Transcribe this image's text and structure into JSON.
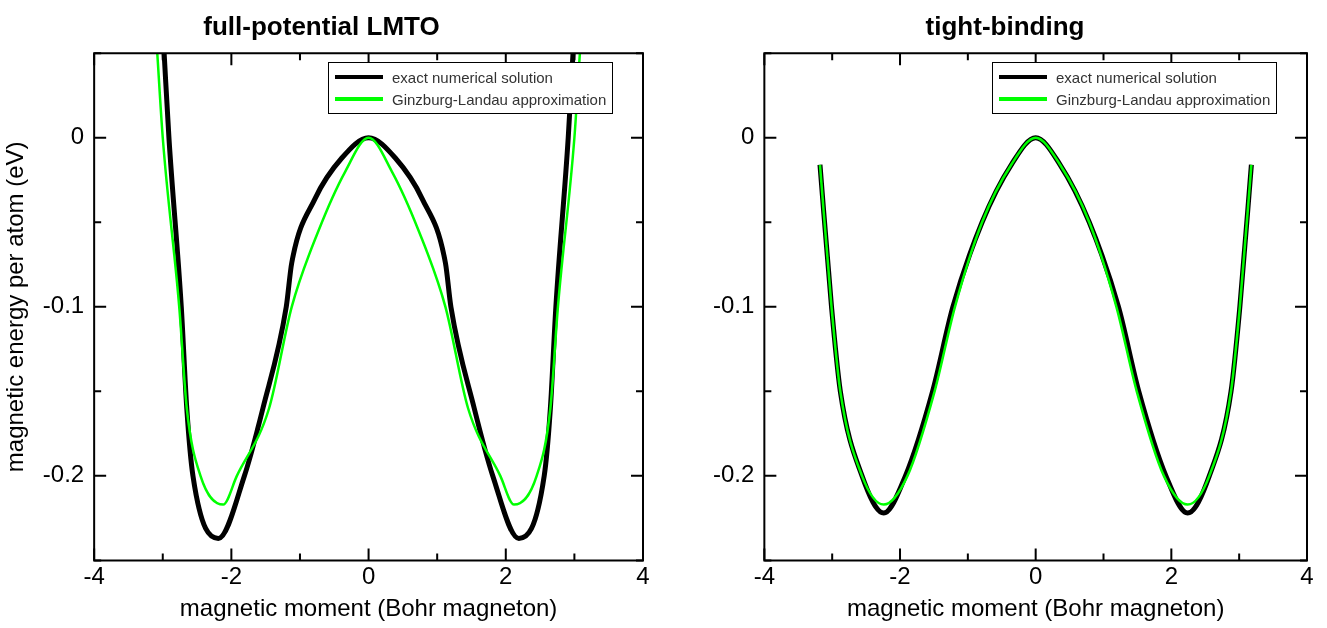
{
  "chart_data": [
    {
      "type": "line",
      "title": "full-potential LMTO",
      "xlabel": "magnetic moment (Bohr magneton)",
      "ylabel": "magnetic energy per atom (eV)",
      "xlim": [
        -4,
        4
      ],
      "ylim": [
        -0.25,
        0.05
      ],
      "xticks": [
        -4,
        {
          "value": -3,
          "label": null
        },
        -2,
        {
          "value": -1,
          "label": null
        },
        0,
        {
          "value": 1,
          "label": null
        },
        2,
        {
          "value": 3,
          "label": null
        },
        4
      ],
      "yticks": [
        {
          "value": -0.25,
          "label": null
        },
        -0.2,
        {
          "value": -0.15,
          "label": null
        },
        -0.1,
        {
          "value": -0.05,
          "label": null
        },
        0,
        {
          "value": 0.05,
          "label": null
        }
      ],
      "grid": false,
      "legend": "top right",
      "marker": "none",
      "line_style": "solid",
      "series": [
        {
          "name": "exact numerical solution",
          "color": "#000000",
          "x": [
            -2.98,
            -2.91,
            -2.73,
            -2.65,
            -2.56,
            -2.19,
            -1.81,
            -1.54,
            -1.2,
            -1.12,
            -0.78,
            -0.39,
            0,
            0.39,
            0.78,
            1.12,
            1.2,
            1.54,
            1.81,
            2.19,
            2.56,
            2.65,
            2.73,
            2.91,
            2.98
          ],
          "values": [
            0.05,
            0,
            -0.1,
            -0.16,
            -0.2,
            -0.237,
            -0.2,
            -0.16,
            -0.1,
            -0.074,
            -0.036,
            -0.012,
            0,
            -0.012,
            -0.036,
            -0.074,
            -0.1,
            -0.16,
            -0.2,
            -0.237,
            -0.2,
            -0.16,
            -0.1,
            0,
            0.05
          ]
        },
        {
          "name": "Ginzburg-Landau approximation",
          "color": "#00ff00",
          "x": [
            -3.08,
            -3.0,
            -2.76,
            -2.65,
            -2.45,
            -2.12,
            -1.92,
            -1.45,
            -1.12,
            -0.73,
            -0.34,
            0,
            0.34,
            0.73,
            1.12,
            1.45,
            1.92,
            2.12,
            2.45,
            2.65,
            2.76,
            3.0,
            3.08
          ],
          "values": [
            0.05,
            0,
            -0.1,
            -0.16,
            -0.2,
            -0.217,
            -0.2,
            -0.16,
            -0.1,
            -0.055,
            -0.02,
            0,
            -0.02,
            -0.055,
            -0.1,
            -0.16,
            -0.2,
            -0.217,
            -0.2,
            -0.16,
            -0.1,
            0,
            0.05
          ]
        }
      ]
    },
    {
      "type": "line",
      "title": "tight-binding",
      "xlabel": "magnetic moment (Bohr magneton)",
      "xlim": [
        -4,
        4
      ],
      "ylim": [
        -0.25,
        0.05
      ],
      "xticks": [
        -4,
        {
          "value": -3,
          "label": null
        },
        -2,
        {
          "value": -1,
          "label": null
        },
        0,
        {
          "value": 1,
          "label": null
        },
        2,
        {
          "value": 3,
          "label": null
        },
        4
      ],
      "yticks": [
        {
          "value": -0.25,
          "label": null
        },
        -0.2,
        {
          "value": -0.15,
          "label": null
        },
        -0.1,
        {
          "value": -0.05,
          "label": null
        },
        0,
        {
          "value": 0.05,
          "label": null
        }
      ],
      "grid": false,
      "legend": "top right",
      "marker": "none",
      "line_style": "solid",
      "series": [
        {
          "name": "exact numerical solution",
          "color": "#000000",
          "x": [
            -3.18,
            -3.01,
            -2.88,
            -2.56,
            -2.24,
            -1.92,
            -1.52,
            -1.22,
            -0.79,
            -0.36,
            0,
            0.36,
            0.79,
            1.22,
            1.52,
            1.92,
            2.24,
            2.56,
            2.88,
            3.01,
            3.18
          ],
          "values": [
            -0.016,
            -0.1,
            -0.15,
            -0.2,
            -0.222,
            -0.2,
            -0.15,
            -0.1,
            -0.05,
            -0.016,
            0,
            -0.016,
            -0.05,
            -0.1,
            -0.15,
            -0.2,
            -0.222,
            -0.2,
            -0.15,
            -0.1,
            -0.016
          ]
        },
        {
          "name": "Ginzburg-Landau approximation",
          "color": "#00ff00",
          "x": [
            -3.18,
            -3.01,
            -2.88,
            -2.56,
            -2.24,
            -1.89,
            -1.49,
            -1.19,
            -0.79,
            -0.36,
            0,
            0.36,
            0.79,
            1.19,
            1.49,
            1.89,
            2.24,
            2.56,
            2.88,
            3.01,
            3.18
          ],
          "values": [
            -0.016,
            -0.1,
            -0.15,
            -0.2,
            -0.217,
            -0.2,
            -0.15,
            -0.1,
            -0.05,
            -0.016,
            0,
            -0.016,
            -0.05,
            -0.1,
            -0.15,
            -0.2,
            -0.217,
            -0.2,
            -0.15,
            -0.1,
            -0.016
          ]
        }
      ]
    }
  ]
}
